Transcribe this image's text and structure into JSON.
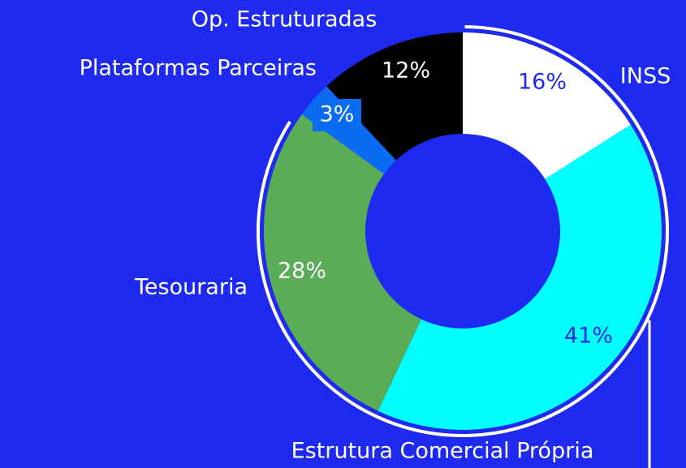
{
  "chart_data": {
    "type": "donut",
    "categories": [
      "INSS",
      "Estrutura Comercial Própria",
      "Tesouraria",
      "Plataformas Parceiras",
      "Op. Estruturadas"
    ],
    "values": [
      16,
      41,
      28,
      3,
      12
    ],
    "value_labels": [
      "16%",
      "41%",
      "28%",
      "3%",
      "12%"
    ],
    "colors": [
      "#ffffff",
      "#00ffff",
      "#5aac56",
      "#0a6cf0",
      "#000000"
    ]
  }
}
